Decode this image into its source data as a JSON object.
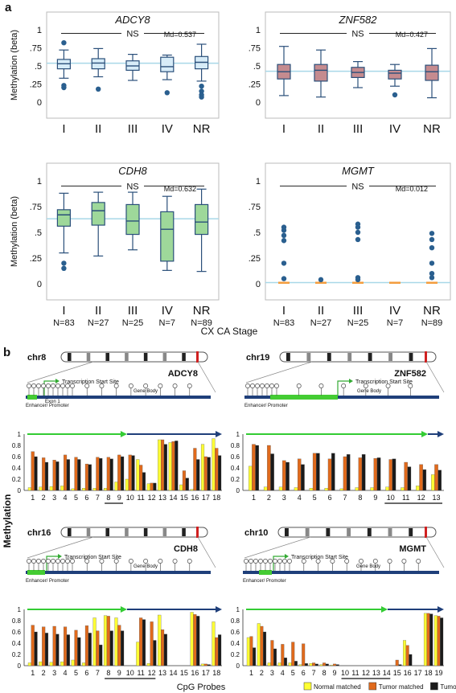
{
  "panel_a": {
    "label": "a",
    "ylabel": "Methylation (beta)",
    "xlabel": "CX CA Stage",
    "yticks": [
      "0",
      ".25",
      ".5",
      ".75",
      "1"
    ],
    "categories": [
      "I",
      "II",
      "III",
      "IV",
      "NR"
    ],
    "counts": [
      "N=83",
      "N=27",
      "N=25",
      "N=7",
      "N=89"
    ]
  },
  "panel_b": {
    "label": "b",
    "ylabel": "Methylation",
    "xlabel": "CpG Probes",
    "yticks": [
      "0",
      "0.2",
      "0.4",
      "0.6",
      "0.8",
      "1"
    ],
    "tss_label": "Transcription Start Site",
    "gene_body_label": "Gene Body",
    "enhancer_label": "Enhancer/ Promoter",
    "exon_label": "Exon 1",
    "legend": [
      {
        "label": "Normal matched",
        "color": "#ffff33"
      },
      {
        "label": "Tumor matched",
        "color": "#e06a1c"
      },
      {
        "label": "Tumor",
        "color": "#1a1a1a"
      }
    ]
  },
  "chart_data": [
    {
      "type": "box",
      "title": "ADCY8",
      "ns": "NS",
      "median_label": "Md=0.537",
      "median_line": 0.537,
      "ylim": [
        0,
        1
      ],
      "color": "#d7ecf8",
      "boxes": [
        {
          "category": "I",
          "whislo": 0.33,
          "q1": 0.46,
          "med": 0.53,
          "q3": 0.59,
          "whishi": 0.72,
          "fliers": [
            0.82,
            0.23,
            0.2
          ]
        },
        {
          "category": "II",
          "whislo": 0.35,
          "q1": 0.46,
          "med": 0.54,
          "q3": 0.6,
          "whishi": 0.74,
          "fliers": [
            0.18
          ]
        },
        {
          "category": "III",
          "whislo": 0.3,
          "q1": 0.44,
          "med": 0.5,
          "q3": 0.57,
          "whishi": 0.66,
          "fliers": []
        },
        {
          "category": "IV",
          "whislo": 0.31,
          "q1": 0.42,
          "med": 0.49,
          "q3": 0.62,
          "whishi": 0.65,
          "fliers": [
            0.13
          ]
        },
        {
          "category": "NR",
          "whislo": 0.29,
          "q1": 0.46,
          "med": 0.55,
          "q3": 0.63,
          "whishi": 0.8,
          "fliers": [
            0.22,
            0.15,
            0.1,
            0.07
          ]
        }
      ]
    },
    {
      "type": "box",
      "title": "ZNF582",
      "ns": "NS",
      "median_label": "Md=0.427",
      "median_line": 0.427,
      "ylim": [
        0,
        1
      ],
      "color": "#c58b8f",
      "boxes": [
        {
          "category": "I",
          "whislo": 0.09,
          "q1": 0.32,
          "med": 0.42,
          "q3": 0.52,
          "whishi": 0.77,
          "fliers": []
        },
        {
          "category": "II",
          "whislo": 0.07,
          "q1": 0.29,
          "med": 0.44,
          "q3": 0.52,
          "whishi": 0.72,
          "fliers": []
        },
        {
          "category": "III",
          "whislo": 0.2,
          "q1": 0.34,
          "med": 0.41,
          "q3": 0.48,
          "whishi": 0.56,
          "fliers": []
        },
        {
          "category": "IV",
          "whislo": 0.22,
          "q1": 0.32,
          "med": 0.4,
          "q3": 0.44,
          "whishi": 0.52,
          "fliers": [
            0.1
          ]
        },
        {
          "category": "NR",
          "whislo": 0.06,
          "q1": 0.3,
          "med": 0.42,
          "q3": 0.51,
          "whishi": 0.74,
          "fliers": []
        }
      ]
    },
    {
      "type": "box",
      "title": "CDH8",
      "ns": "NS",
      "median_label": "Md=0.632",
      "median_line": 0.632,
      "ylim": [
        0,
        1
      ],
      "color": "#9ed89a",
      "boxes": [
        {
          "category": "I",
          "whislo": 0.3,
          "q1": 0.56,
          "med": 0.67,
          "q3": 0.72,
          "whishi": 0.88,
          "fliers": [
            0.2,
            0.15
          ]
        },
        {
          "category": "II",
          "whislo": 0.27,
          "q1": 0.57,
          "med": 0.71,
          "q3": 0.79,
          "whishi": 0.89,
          "fliers": []
        },
        {
          "category": "III",
          "whislo": 0.33,
          "q1": 0.48,
          "med": 0.61,
          "q3": 0.77,
          "whishi": 0.89,
          "fliers": []
        },
        {
          "category": "IV",
          "whislo": 0.13,
          "q1": 0.22,
          "med": 0.53,
          "q3": 0.7,
          "whishi": 0.85,
          "fliers": []
        },
        {
          "category": "NR",
          "whislo": 0.12,
          "q1": 0.48,
          "med": 0.6,
          "q3": 0.77,
          "whishi": 0.92,
          "fliers": []
        }
      ]
    },
    {
      "type": "box",
      "title": "MGMT",
      "ns": "NS",
      "median_label": "Md=0.012",
      "median_line": 0.012,
      "ylim": [
        0,
        1
      ],
      "color": "#f39c3c",
      "boxes": [
        {
          "category": "I",
          "whislo": 0.0,
          "q1": 0.005,
          "med": 0.01,
          "q3": 0.02,
          "whishi": 0.03,
          "fliers": [
            0.55,
            0.52,
            0.47,
            0.42,
            0.2,
            0.05
          ]
        },
        {
          "category": "II",
          "whislo": 0.0,
          "q1": 0.005,
          "med": 0.01,
          "q3": 0.02,
          "whishi": 0.03,
          "fliers": [
            0.04
          ]
        },
        {
          "category": "III",
          "whislo": 0.0,
          "q1": 0.005,
          "med": 0.01,
          "q3": 0.02,
          "whishi": 0.03,
          "fliers": [
            0.58,
            0.55,
            0.5,
            0.43,
            0.06,
            0.04
          ]
        },
        {
          "category": "IV",
          "whislo": 0.0,
          "q1": 0.005,
          "med": 0.01,
          "q3": 0.02,
          "whishi": 0.02,
          "fliers": []
        },
        {
          "category": "NR",
          "whislo": 0.0,
          "q1": 0.005,
          "med": 0.01,
          "q3": 0.02,
          "whishi": 0.03,
          "fliers": [
            0.49,
            0.43,
            0.35,
            0.2,
            0.1,
            0.06
          ]
        }
      ]
    },
    {
      "type": "bar",
      "chromosome": "chr8",
      "gene": "ADCY8",
      "ylim": [
        0,
        1
      ],
      "categories": [
        "1",
        "2",
        "3",
        "4",
        "5",
        "6",
        "7",
        "8",
        "9",
        "10",
        "11",
        "12",
        "13",
        "14",
        "15",
        "16",
        "17",
        "18"
      ],
      "underlined": [
        "8",
        "9"
      ],
      "series": [
        {
          "name": "Normal matched",
          "values": [
            0.05,
            0.06,
            0.07,
            0.08,
            0.03,
            0.04,
            0.04,
            0.04,
            0.15,
            0.2,
            0.55,
            0.12,
            0.9,
            0.85,
            0.1,
            0.02,
            0.82,
            0.92
          ]
        },
        {
          "name": "Tumor matched",
          "values": [
            0.69,
            0.58,
            0.54,
            0.63,
            0.59,
            0.47,
            0.59,
            0.59,
            0.63,
            0.63,
            0.45,
            0.13,
            0.9,
            0.87,
            0.35,
            0.75,
            0.6,
            0.75
          ]
        },
        {
          "name": "Tumor",
          "values": [
            0.6,
            0.5,
            0.51,
            0.55,
            0.55,
            0.46,
            0.57,
            0.56,
            0.6,
            0.62,
            0.32,
            0.13,
            0.82,
            0.88,
            0.22,
            0.55,
            0.59,
            0.62
          ]
        }
      ]
    },
    {
      "type": "bar",
      "chromosome": "chr19",
      "gene": "ZNF582",
      "ylim": [
        0,
        1
      ],
      "categories": [
        "1",
        "2",
        "3",
        "4",
        "5",
        "6",
        "7",
        "8",
        "9",
        "10",
        "11",
        "12",
        "13"
      ],
      "underlined": [
        "10",
        "11",
        "12",
        "13"
      ],
      "series": [
        {
          "name": "Normal matched",
          "values": [
            0.43,
            0.06,
            0.06,
            0.05,
            0.04,
            0.04,
            0.03,
            0.05,
            0.05,
            0.06,
            0.05,
            0.08,
            0.28
          ]
        },
        {
          "name": "Tumor matched",
          "values": [
            0.82,
            0.8,
            0.53,
            0.56,
            0.66,
            0.56,
            0.6,
            0.58,
            0.57,
            0.55,
            0.5,
            0.46,
            0.46
          ]
        },
        {
          "name": "Tumor",
          "values": [
            0.8,
            0.65,
            0.5,
            0.46,
            0.66,
            0.66,
            0.64,
            0.64,
            0.58,
            0.56,
            0.42,
            0.37,
            0.36
          ]
        }
      ]
    },
    {
      "type": "bar",
      "chromosome": "chr16",
      "gene": "CDH8",
      "ylim": [
        0,
        1
      ],
      "categories": [
        "1",
        "2",
        "3",
        "4",
        "5",
        "6",
        "7",
        "8",
        "9",
        "10",
        "11",
        "12",
        "13",
        "14",
        "15",
        "16",
        "17",
        "18"
      ],
      "underlined": [
        "8",
        "9",
        "10",
        "11",
        "12"
      ],
      "series": [
        {
          "name": "Normal matched",
          "values": [
            0.05,
            0.07,
            0.06,
            0.07,
            0.1,
            0.05,
            0.85,
            0.89,
            0.85,
            0.0,
            0.42,
            0.04,
            0.9,
            0.0,
            0.0,
            0.95,
            0.03,
            0.78
          ]
        },
        {
          "name": "Tumor matched",
          "values": [
            0.72,
            0.69,
            0.7,
            0.69,
            0.63,
            0.71,
            0.62,
            0.88,
            0.72,
            0.0,
            0.85,
            0.78,
            0.64,
            0.0,
            0.0,
            0.91,
            0.03,
            0.5
          ]
        },
        {
          "name": "Tumor",
          "values": [
            0.6,
            0.58,
            0.56,
            0.55,
            0.5,
            0.58,
            0.37,
            0.62,
            0.62,
            0.0,
            0.82,
            0.45,
            0.56,
            0.0,
            0.0,
            0.88,
            0.02,
            0.55
          ]
        }
      ]
    },
    {
      "type": "bar",
      "chromosome": "chr10",
      "gene": "MGMT",
      "ylim": [
        0,
        1
      ],
      "categories": [
        "1",
        "2",
        "3",
        "4",
        "5",
        "6",
        "7",
        "8",
        "9",
        "10",
        "11",
        "12",
        "13",
        "14",
        "15",
        "16",
        "17",
        "18",
        "19"
      ],
      "underlined": [
        "10",
        "11",
        "12",
        "13",
        "14"
      ],
      "series": [
        {
          "name": "Normal matched",
          "values": [
            0.5,
            0.75,
            0.05,
            0.05,
            0.05,
            0.02,
            0.04,
            0.02,
            0.01,
            0.0,
            0.0,
            0.0,
            0.0,
            0.0,
            0.0,
            0.45,
            0.0,
            0.93,
            0.89
          ]
        },
        {
          "name": "Tumor matched",
          "values": [
            0.52,
            0.7,
            0.45,
            0.38,
            0.42,
            0.39,
            0.05,
            0.05,
            0.03,
            0.0,
            0.0,
            0.0,
            0.0,
            0.0,
            0.1,
            0.36,
            0.0,
            0.93,
            0.88
          ]
        },
        {
          "name": "Tumor",
          "values": [
            0.32,
            0.6,
            0.3,
            0.14,
            0.08,
            0.04,
            0.03,
            0.03,
            0.02,
            0.0,
            0.0,
            0.0,
            0.0,
            0.0,
            0.02,
            0.2,
            0.0,
            0.92,
            0.85
          ]
        }
      ]
    }
  ]
}
